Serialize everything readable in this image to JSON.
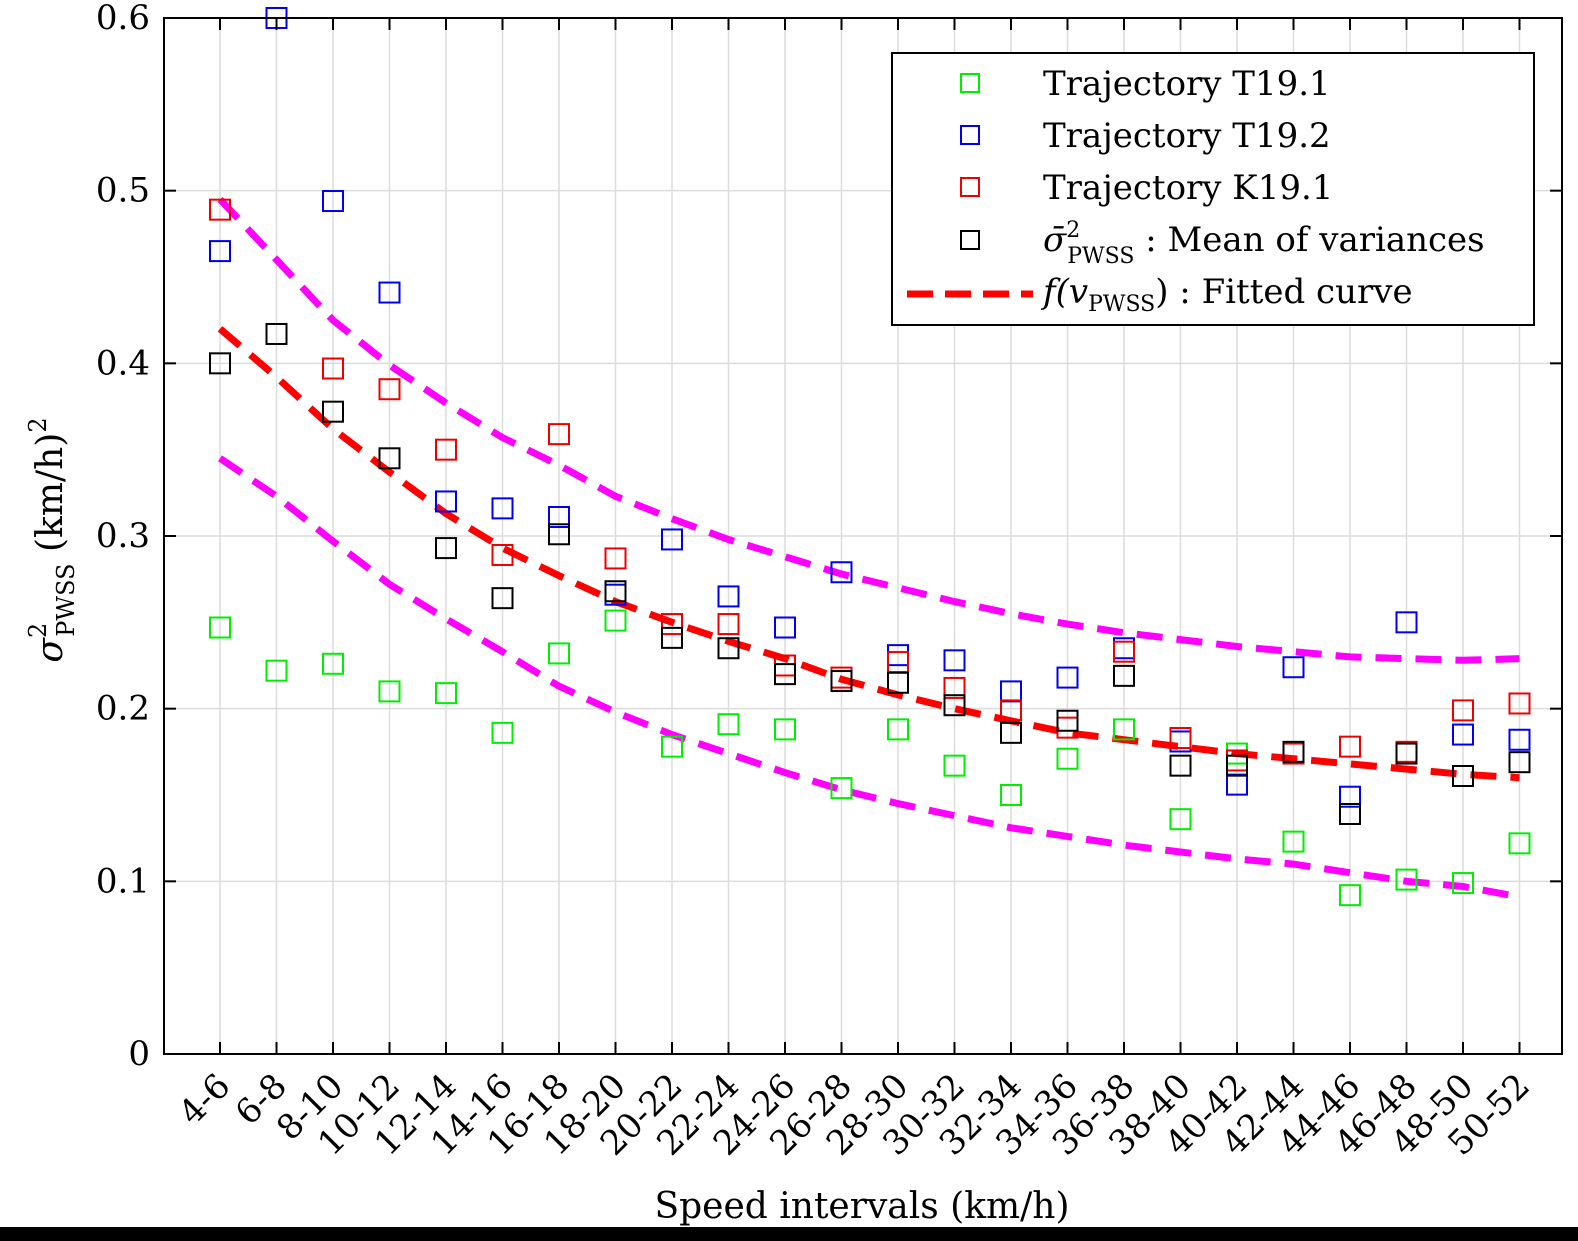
{
  "chart_data": {
    "type": "scatter",
    "xlabel": "Speed intervals (km/h)",
    "ylabel": {
      "symbol": "σ",
      "sup": "2",
      "sub": "PWSS",
      "unit": " (km/h)",
      "unit_sup": "2"
    },
    "categories": [
      "4-6",
      "6-8",
      "8-10",
      "10-12",
      "12-14",
      "14-16",
      "16-18",
      "18-20",
      "20-22",
      "22-24",
      "24-26",
      "26-28",
      "28-30",
      "30-32",
      "32-34",
      "34-36",
      "36-38",
      "38-40",
      "40-42",
      "42-44",
      "44-46",
      "46-48",
      "48-50",
      "50-52"
    ],
    "ylim": [
      0,
      0.6
    ],
    "yticks": [
      "0",
      "0.1",
      "0.2",
      "0.3",
      "0.4",
      "0.5",
      "0.6"
    ],
    "ytick_values": [
      0,
      0.1,
      0.2,
      0.3,
      0.4,
      0.5,
      0.6
    ],
    "grid": true,
    "legend_position": "top-right",
    "series": [
      {
        "name": "Trajectory T19.1",
        "marker": "square",
        "color": "#00ee00",
        "values": [
          0.247,
          0.222,
          0.226,
          0.21,
          0.209,
          0.186,
          0.232,
          0.251,
          0.178,
          0.191,
          0.188,
          0.154,
          0.188,
          0.167,
          0.15,
          0.171,
          0.188,
          0.136,
          0.174,
          0.123,
          0.092,
          0.101,
          0.099,
          0.122
        ]
      },
      {
        "name": "Trajectory T19.2",
        "marker": "square",
        "color": "#0000ee",
        "values": [
          0.465,
          0.6,
          0.494,
          0.441,
          0.32,
          0.316,
          0.311,
          0.266,
          0.298,
          0.265,
          0.247,
          0.279,
          0.231,
          0.228,
          0.21,
          0.218,
          0.235,
          0.181,
          0.156,
          0.224,
          0.149,
          0.25,
          0.185,
          0.182
        ]
      },
      {
        "name": "Trajectory K19.1",
        "marker": "square",
        "color": "#ee0000",
        "values": [
          0.489,
          null,
          0.397,
          0.385,
          0.35,
          0.289,
          0.359,
          0.287,
          0.249,
          0.249,
          0.225,
          0.218,
          0.227,
          0.212,
          0.199,
          0.189,
          0.233,
          0.183,
          0.17,
          0.174,
          0.178,
          0.175,
          0.199,
          0.203
        ]
      },
      {
        "name": "Mean of variances",
        "legend_math": {
          "symbol": "σ̄",
          "sup": "2",
          "sub": "PWSS",
          "text": " : Mean of variances"
        },
        "marker": "square",
        "color": "#000000",
        "values": [
          0.4,
          0.417,
          0.372,
          0.345,
          0.293,
          0.264,
          0.301,
          0.268,
          0.241,
          0.235,
          0.22,
          0.216,
          0.215,
          0.202,
          0.186,
          0.193,
          0.219,
          0.167,
          0.167,
          0.175,
          0.139,
          0.174,
          0.161,
          0.169
        ]
      },
      {
        "name": "Fitted curve",
        "legend_math": {
          "prefix": "f(v",
          "sub": "PWSS",
          "text": ") : Fitted curve"
        },
        "line": "dashed",
        "color": "#ff0000",
        "values": [
          0.42,
          0.392,
          0.362,
          0.337,
          0.313,
          0.293,
          0.277,
          0.262,
          0.25,
          0.239,
          0.229,
          0.217,
          0.208,
          0.2,
          0.193,
          0.186,
          0.182,
          0.178,
          0.174,
          0.171,
          0.168,
          0.165,
          0.162,
          0.16
        ]
      },
      {
        "line": "dashed",
        "color": "#ff00ff",
        "in_legend": false,
        "values": [
          0.495,
          0.46,
          0.425,
          0.399,
          0.377,
          0.357,
          0.341,
          0.323,
          0.31,
          0.298,
          0.288,
          0.278,
          0.27,
          0.262,
          0.255,
          0.249,
          0.244,
          0.24,
          0.236,
          0.233,
          0.23,
          0.229,
          0.228,
          0.229
        ]
      },
      {
        "line": "dashed",
        "color": "#ff00ff",
        "in_legend": false,
        "values": [
          0.345,
          0.323,
          0.297,
          0.272,
          0.252,
          0.233,
          0.213,
          0.198,
          0.185,
          0.174,
          0.163,
          0.153,
          0.145,
          0.138,
          0.131,
          0.126,
          0.121,
          0.117,
          0.113,
          0.11,
          0.105,
          0.1,
          0.097,
          0.091
        ]
      }
    ]
  }
}
